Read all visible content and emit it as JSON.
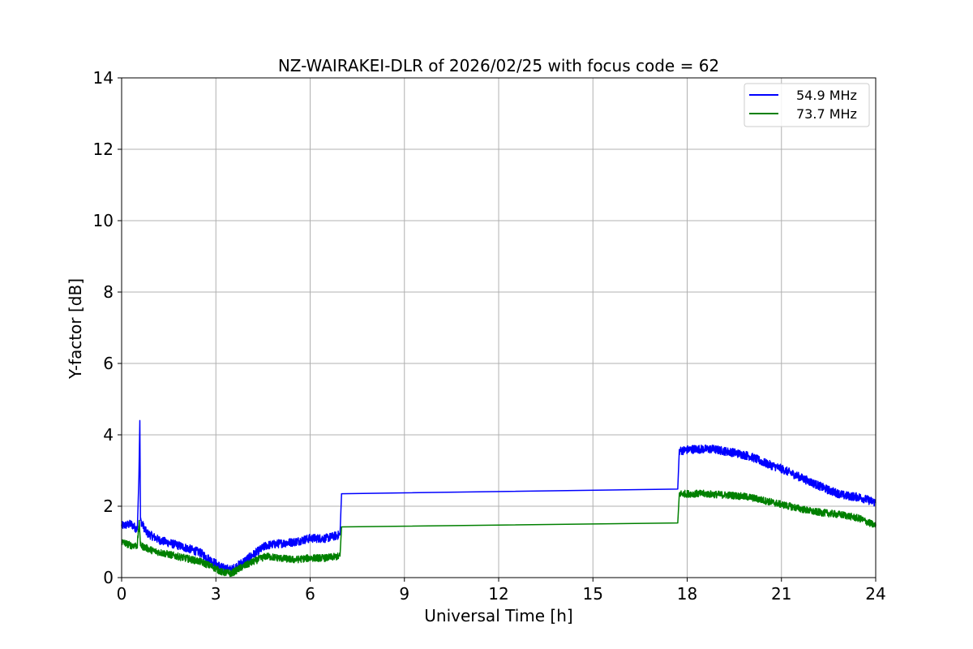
{
  "chart_data": {
    "type": "line",
    "title": "NZ-WAIRAKEI-DLR of 2026/02/25 with focus code = 62",
    "xlabel": "Universal Time [h]",
    "ylabel": "Y-factor [dB]",
    "xlim": [
      0,
      24
    ],
    "ylim": [
      0,
      14
    ],
    "xticks": [
      0,
      3,
      6,
      9,
      12,
      15,
      18,
      21,
      24
    ],
    "yticks": [
      0,
      2,
      4,
      6,
      8,
      10,
      12,
      14
    ],
    "grid": true,
    "legend_position": "top-right",
    "series": [
      {
        "name": "54.9 MHz",
        "color": "#0000ff",
        "noise": 0.12,
        "points": [
          [
            0.0,
            1.45
          ],
          [
            0.3,
            1.5
          ],
          [
            0.5,
            1.35
          ],
          [
            0.55,
            2.8
          ],
          [
            0.58,
            4.4
          ],
          [
            0.6,
            1.6
          ],
          [
            0.8,
            1.25
          ],
          [
            1.2,
            1.05
          ],
          [
            1.6,
            0.95
          ],
          [
            2.0,
            0.85
          ],
          [
            2.5,
            0.7
          ],
          [
            2.9,
            0.45
          ],
          [
            3.2,
            0.28
          ],
          [
            3.5,
            0.22
          ],
          [
            3.8,
            0.4
          ],
          [
            4.2,
            0.65
          ],
          [
            4.6,
            0.9
          ],
          [
            5.0,
            0.95
          ],
          [
            5.5,
            1.0
          ],
          [
            6.0,
            1.1
          ],
          [
            6.5,
            1.1
          ],
          [
            6.95,
            1.2
          ],
          [
            7.0,
            2.35
          ],
          [
            17.7,
            2.48
          ],
          [
            17.75,
            3.55
          ],
          [
            18.2,
            3.6
          ],
          [
            18.8,
            3.6
          ],
          [
            19.5,
            3.5
          ],
          [
            20.0,
            3.4
          ],
          [
            20.5,
            3.2
          ],
          [
            21.0,
            3.05
          ],
          [
            21.5,
            2.85
          ],
          [
            22.0,
            2.65
          ],
          [
            22.5,
            2.45
          ],
          [
            23.0,
            2.3
          ],
          [
            23.5,
            2.25
          ],
          [
            24.0,
            2.1
          ]
        ]
      },
      {
        "name": "73.7 MHz",
        "color": "#008000",
        "noise": 0.1,
        "points": [
          [
            0.0,
            1.0
          ],
          [
            0.3,
            0.9
          ],
          [
            0.5,
            0.9
          ],
          [
            0.56,
            1.6
          ],
          [
            0.6,
            0.9
          ],
          [
            1.0,
            0.75
          ],
          [
            1.5,
            0.65
          ],
          [
            2.0,
            0.55
          ],
          [
            2.5,
            0.45
          ],
          [
            2.9,
            0.3
          ],
          [
            3.2,
            0.15
          ],
          [
            3.5,
            0.12
          ],
          [
            3.8,
            0.28
          ],
          [
            4.2,
            0.45
          ],
          [
            4.6,
            0.6
          ],
          [
            5.0,
            0.55
          ],
          [
            5.5,
            0.5
          ],
          [
            6.0,
            0.55
          ],
          [
            6.5,
            0.55
          ],
          [
            6.95,
            0.6
          ],
          [
            7.0,
            1.42
          ],
          [
            17.7,
            1.53
          ],
          [
            17.75,
            2.35
          ],
          [
            18.5,
            2.35
          ],
          [
            19.5,
            2.3
          ],
          [
            20.0,
            2.25
          ],
          [
            20.5,
            2.15
          ],
          [
            21.0,
            2.05
          ],
          [
            21.5,
            1.95
          ],
          [
            22.0,
            1.85
          ],
          [
            22.5,
            1.8
          ],
          [
            23.0,
            1.75
          ],
          [
            23.5,
            1.65
          ],
          [
            24.0,
            1.45
          ]
        ]
      }
    ]
  }
}
